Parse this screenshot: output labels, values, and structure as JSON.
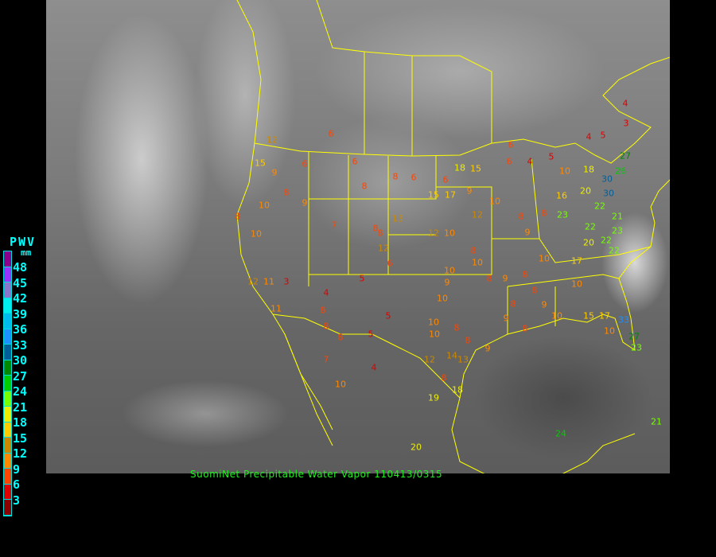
{
  "title": "SuomiNet Precipitable Water Vapor 110413/0315",
  "legend": {
    "title": "PWV",
    "unit": "mm",
    "ticks": [
      "48",
      "45",
      "42",
      "39",
      "36",
      "33",
      "30",
      "27",
      "24",
      "21",
      "18",
      "15",
      "12",
      "9",
      "6",
      "3"
    ],
    "colors_top_to_bottom": [
      "#8b008b",
      "#9933ff",
      "#8877cc",
      "#00eeee",
      "#00bbee",
      "#1e90ff",
      "#005f99",
      "#008800",
      "#00cc00",
      "#77ff00",
      "#eeee00",
      "#ffcc00",
      "#cc8800",
      "#ff8800",
      "#ff4400",
      "#dd0000",
      "#8b0000"
    ]
  },
  "stations": [
    "6",
    "12",
    "15",
    "9",
    "6",
    "6",
    "8",
    "10",
    "9",
    "8",
    "10",
    "8",
    "8",
    "6",
    "18",
    "6",
    "15",
    "17",
    "13",
    "8",
    "8",
    "7",
    "12",
    "10",
    "12",
    "6",
    "12",
    "11",
    "3",
    "4",
    "5",
    "11",
    "8",
    "8",
    "8",
    "5",
    "5",
    "7",
    "10",
    "4",
    "12",
    "14",
    "13",
    "8",
    "19",
    "18",
    "20",
    "10",
    "9",
    "8",
    "10",
    "8",
    "10",
    "10",
    "10",
    "8",
    "8",
    "9",
    "9",
    "8",
    "9",
    "10",
    "10",
    "17",
    "10",
    "8",
    "9",
    "8",
    "9",
    "8",
    "16",
    "10",
    "20",
    "18",
    "30",
    "30",
    "22",
    "21",
    "22",
    "20",
    "22",
    "22",
    "23",
    "23",
    "27",
    "26",
    "3",
    "4",
    "5",
    "4",
    "5",
    "4",
    "6",
    "6",
    "10",
    "15",
    "9",
    "12",
    "17",
    "10",
    "33",
    "27",
    "23",
    "21",
    "24",
    "15",
    "8",
    "8"
  ]
}
